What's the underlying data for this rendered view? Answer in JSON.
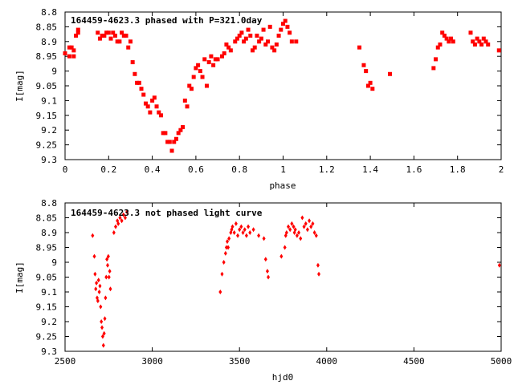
{
  "page": {
    "background": "#ffffff"
  },
  "chart_data": [
    {
      "type": "scatter",
      "title": "164459-4623.3 phased with P=321.0day",
      "xlabel": "phase",
      "ylabel": "I[mag]",
      "xlim": [
        0,
        2
      ],
      "ylim": [
        8.8,
        9.3
      ],
      "y_inverted": true,
      "xticks": [
        "0",
        "0.2",
        "0.4",
        "0.6",
        "0.8",
        "1",
        "1.2",
        "1.4",
        "1.6",
        "1.8",
        "2"
      ],
      "xtick_values": [
        0,
        0.2,
        0.4,
        0.6,
        0.8,
        1.0,
        1.2,
        1.4,
        1.6,
        1.8,
        2.0
      ],
      "yticks": [
        "8.8",
        "8.85",
        "8.9",
        "8.95",
        "9",
        "9.05",
        "9.1",
        "9.15",
        "9.2",
        "9.25",
        "9.3"
      ],
      "ytick_values": [
        8.8,
        8.85,
        8.9,
        8.95,
        9.0,
        9.05,
        9.1,
        9.15,
        9.2,
        9.25,
        9.3
      ],
      "grid": false,
      "marker_color": "#ff0000",
      "marker": "square",
      "series": [
        {
          "x": [
            0.0,
            0.02,
            0.02,
            0.03,
            0.04,
            0.04,
            0.05,
            0.06,
            0.06,
            0.15,
            0.16,
            0.17,
            0.18,
            0.19,
            0.2,
            0.21,
            0.22,
            0.23,
            0.24,
            0.25,
            0.26,
            0.27,
            0.28,
            0.29,
            0.3,
            0.31,
            0.32,
            0.33,
            0.34,
            0.35,
            0.36,
            0.37,
            0.38,
            0.39,
            0.4,
            0.41,
            0.42,
            0.43,
            0.44,
            0.45,
            0.46,
            0.47,
            0.48,
            0.49,
            0.5,
            0.51,
            0.52,
            0.53,
            0.54,
            0.55,
            0.56,
            0.57,
            0.58,
            0.59,
            0.6,
            0.61,
            0.62,
            0.63,
            0.64,
            0.65,
            0.66,
            0.67,
            0.68,
            0.69,
            0.7,
            0.72,
            0.73,
            0.74,
            0.75,
            0.76,
            0.78,
            0.79,
            0.8,
            0.81,
            0.82,
            0.83,
            0.84,
            0.85,
            0.86,
            0.87,
            0.88,
            0.89,
            0.9,
            0.91,
            0.92,
            0.93,
            0.94,
            0.95,
            0.96,
            0.97,
            0.98,
            0.99,
            1.0,
            1.01,
            1.02,
            1.03,
            1.04,
            1.06,
            1.35,
            1.37,
            1.38,
            1.39,
            1.4,
            1.41,
            1.49,
            1.69,
            1.7,
            1.71,
            1.72,
            1.73,
            1.74,
            1.75,
            1.76,
            1.77,
            1.78,
            1.86,
            1.87,
            1.88,
            1.89,
            1.9,
            1.91,
            1.92,
            1.93,
            1.94,
            1.99
          ],
          "y": [
            8.94,
            8.95,
            8.92,
            8.92,
            8.95,
            8.93,
            8.88,
            8.86,
            8.87,
            8.87,
            8.89,
            8.88,
            8.88,
            8.87,
            8.87,
            8.89,
            8.87,
            8.88,
            8.9,
            8.9,
            8.87,
            8.88,
            8.88,
            8.92,
            8.9,
            8.97,
            9.01,
            9.04,
            9.04,
            9.06,
            9.08,
            9.11,
            9.12,
            9.14,
            9.1,
            9.09,
            9.12,
            9.14,
            9.15,
            9.21,
            9.21,
            9.24,
            9.24,
            9.27,
            9.24,
            9.23,
            9.21,
            9.2,
            9.19,
            9.1,
            9.12,
            9.05,
            9.06,
            9.02,
            8.99,
            8.98,
            9.0,
            9.02,
            8.96,
            9.05,
            8.97,
            8.95,
            8.98,
            8.96,
            8.96,
            8.95,
            8.94,
            8.91,
            8.92,
            8.93,
            8.9,
            8.89,
            8.88,
            8.87,
            8.9,
            8.89,
            8.86,
            8.88,
            8.93,
            8.92,
            8.88,
            8.9,
            8.89,
            8.86,
            8.91,
            8.9,
            8.85,
            8.92,
            8.93,
            8.91,
            8.88,
            8.86,
            8.84,
            8.83,
            8.85,
            8.87,
            8.9,
            8.9,
            8.92,
            8.98,
            9.0,
            9.05,
            9.04,
            9.06,
            9.01,
            8.99,
            8.96,
            8.92,
            8.91,
            8.87,
            8.88,
            8.89,
            8.9,
            8.89,
            8.9,
            8.87,
            8.9,
            8.91,
            8.89,
            8.9,
            8.91,
            8.89,
            8.9,
            8.91,
            8.93
          ]
        }
      ]
    },
    {
      "type": "scatter",
      "title": "164459-4623.3 not phased light curve",
      "xlabel": "hjd0",
      "ylabel": "I[mag]",
      "xlim": [
        2500,
        5000
      ],
      "ylim": [
        8.8,
        9.3
      ],
      "y_inverted": true,
      "xticks": [
        "2500",
        "3000",
        "3500",
        "4000",
        "4500",
        "5000"
      ],
      "xtick_values": [
        2500,
        3000,
        3500,
        4000,
        4500,
        5000
      ],
      "yticks": [
        "8.8",
        "8.85",
        "8.9",
        "8.95",
        "9",
        "9.05",
        "9.1",
        "9.15",
        "9.2",
        "9.25",
        "9.3"
      ],
      "ytick_values": [
        8.8,
        8.85,
        8.9,
        8.95,
        9.0,
        9.05,
        9.1,
        9.15,
        9.2,
        9.25,
        9.3
      ],
      "grid": false,
      "marker_color": "#ff0000",
      "marker": "diamond",
      "series": [
        {
          "x": [
            2658,
            2668,
            2672,
            2676,
            2680,
            2684,
            2688,
            2692,
            2696,
            2700,
            2704,
            2708,
            2712,
            2716,
            2720,
            2724,
            2728,
            2732,
            2736,
            2740,
            2744,
            2748,
            2752,
            2756,
            2760,
            2780,
            2790,
            2800,
            2805,
            2815,
            2825,
            2835,
            2845,
            2855,
            3390,
            3400,
            3410,
            3420,
            3425,
            3430,
            3435,
            3440,
            3450,
            3455,
            3460,
            3470,
            3480,
            3490,
            3500,
            3510,
            3520,
            3530,
            3540,
            3550,
            3560,
            3580,
            3610,
            3640,
            3650,
            3660,
            3665,
            3740,
            3760,
            3765,
            3770,
            3780,
            3790,
            3800,
            3810,
            3815,
            3820,
            3830,
            3840,
            3850,
            3860,
            3870,
            3880,
            3890,
            3900,
            3910,
            3920,
            3930,
            3940,
            3950,
            3955,
            4990
          ],
          "y": [
            8.91,
            8.98,
            9.04,
            9.09,
            9.07,
            9.12,
            9.13,
            9.06,
            9.1,
            9.08,
            9.15,
            9.2,
            9.22,
            9.25,
            9.28,
            9.24,
            9.19,
            9.12,
            9.05,
            8.99,
            9.01,
            8.98,
            9.05,
            9.03,
            9.09,
            8.9,
            8.88,
            8.86,
            8.87,
            8.85,
            8.86,
            8.84,
            8.85,
            8.83,
            9.1,
            9.04,
            9.0,
            8.97,
            8.95,
            8.93,
            8.95,
            8.92,
            8.9,
            8.89,
            8.88,
            8.9,
            8.87,
            8.91,
            8.89,
            8.88,
            8.9,
            8.89,
            8.91,
            8.88,
            8.9,
            8.89,
            8.91,
            8.92,
            8.99,
            9.03,
            9.05,
            8.98,
            8.95,
            8.91,
            8.9,
            8.88,
            8.89,
            8.87,
            8.88,
            8.9,
            8.89,
            8.91,
            8.9,
            8.92,
            8.85,
            8.88,
            8.87,
            8.89,
            8.86,
            8.88,
            8.87,
            8.9,
            8.91,
            9.01,
            9.04,
            9.01
          ]
        }
      ]
    }
  ]
}
